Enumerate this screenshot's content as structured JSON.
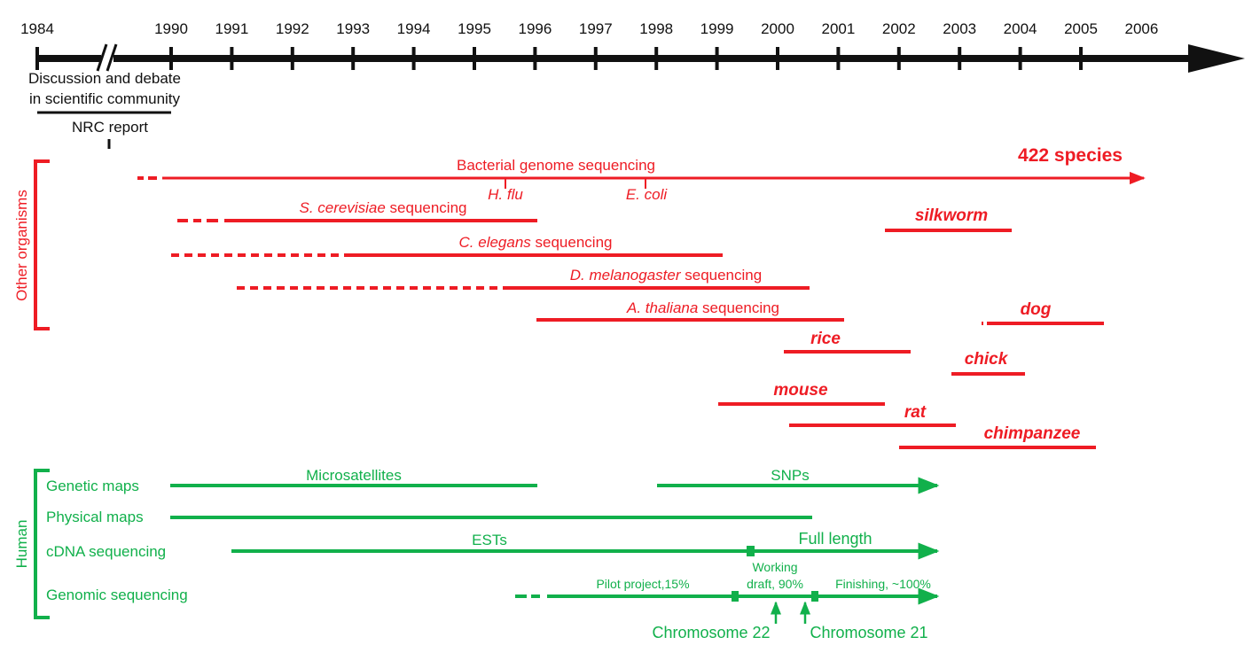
{
  "timeline": {
    "years": [
      "1984",
      "1990",
      "1991",
      "1992",
      "1993",
      "1994",
      "1995",
      "1996",
      "1997",
      "1998",
      "1999",
      "2000",
      "2001",
      "2002",
      "2003",
      "2004",
      "2005",
      "2006"
    ]
  },
  "early": {
    "discussion_line1": "Discussion and debate",
    "discussion_line2": "in scientific community",
    "nrc_report": "NRC report"
  },
  "other_organisms": {
    "group_label": "Other organisms",
    "bacterial": {
      "label": "Bacterial genome sequencing",
      "count": "422 species",
      "marker1": "H. flu",
      "marker2": "E. coli"
    },
    "scerevisiae": {
      "name": "S. cerevisiae",
      "suffix": " sequencing"
    },
    "celegans": {
      "name": "C. elegans",
      "suffix": " sequencing"
    },
    "dmelanogaster": {
      "name": "D. melanogaster",
      "suffix": " sequencing"
    },
    "athaliana": {
      "name": "A. thaliana",
      "suffix": " sequencing"
    },
    "species": [
      "silkworm",
      "dog",
      "rice",
      "chick",
      "mouse",
      "rat",
      "chimpanzee"
    ]
  },
  "human": {
    "group_label": "Human",
    "rows": [
      "Genetic maps",
      "Physical maps",
      "cDNA sequencing",
      "Genomic sequencing"
    ],
    "microsatellites": "Microsatellites",
    "snps": "SNPs",
    "ests": "ESTs",
    "full_length": "Full length",
    "pilot_project": "Pilot project,15%",
    "working_line1": "Working",
    "working_line2": "draft, 90%",
    "finishing": "Finishing, ~100%",
    "chromosome22": "Chromosome 22",
    "chromosome21": "Chromosome 21"
  },
  "colors": {
    "axis": "#111111",
    "red": "#ee1c24",
    "green": "#11b04b"
  }
}
